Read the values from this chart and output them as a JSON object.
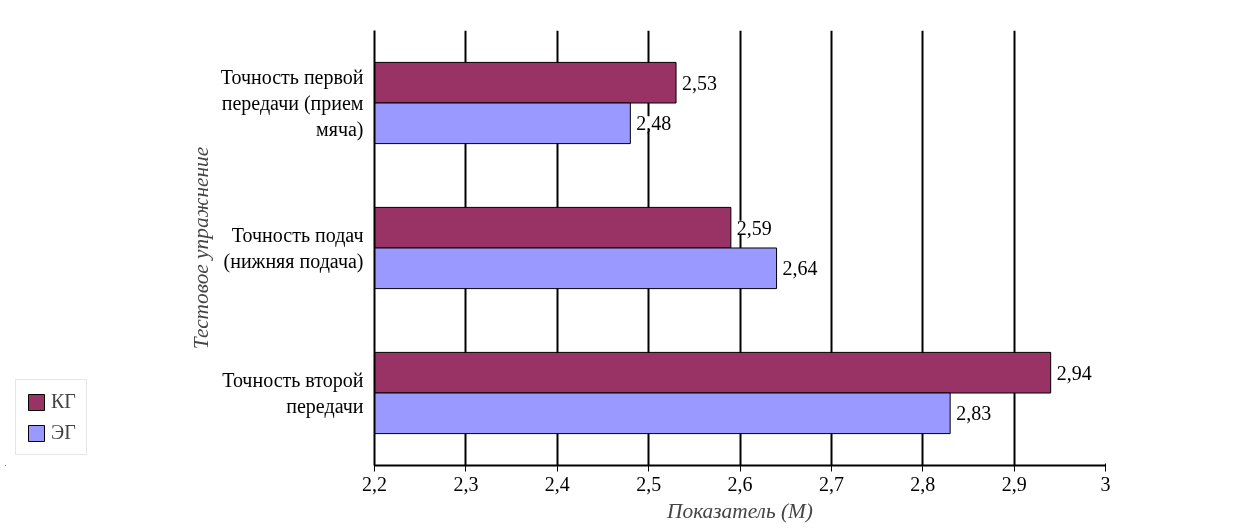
{
  "chart_data": {
    "type": "bar",
    "orientation": "horizontal",
    "xlabel": "Показатель (М)",
    "ylabel": "Тестовое упражнение",
    "categories": [
      "Точность первой передачи (прием мяча)",
      "Точность подач (нижняя подача)",
      "Точность второй передачи"
    ],
    "series": [
      {
        "name": "КГ",
        "color": "#993366",
        "values": [
          2.53,
          2.59,
          2.94
        ],
        "value_labels": [
          "2,53",
          "2,59",
          "2,94"
        ]
      },
      {
        "name": "ЭГ",
        "color": "#9999ff",
        "values": [
          2.48,
          2.64,
          2.83
        ],
        "value_labels": [
          "2,48",
          "2,64",
          "2,83"
        ]
      }
    ],
    "xlim": [
      2.2,
      3.0
    ],
    "xticks": [
      {
        "value": 2.2,
        "label": "2,2"
      },
      {
        "value": 2.3,
        "label": "2,3"
      },
      {
        "value": 2.4,
        "label": "2,4"
      },
      {
        "value": 2.5,
        "label": "2,5"
      },
      {
        "value": 2.6,
        "label": "2,6"
      },
      {
        "value": 2.7,
        "label": "2,7"
      },
      {
        "value": 2.8,
        "label": "2,8"
      },
      {
        "value": 2.9,
        "label": "2,9"
      },
      3
    ],
    "grid": "x",
    "legend": "bottom left"
  }
}
